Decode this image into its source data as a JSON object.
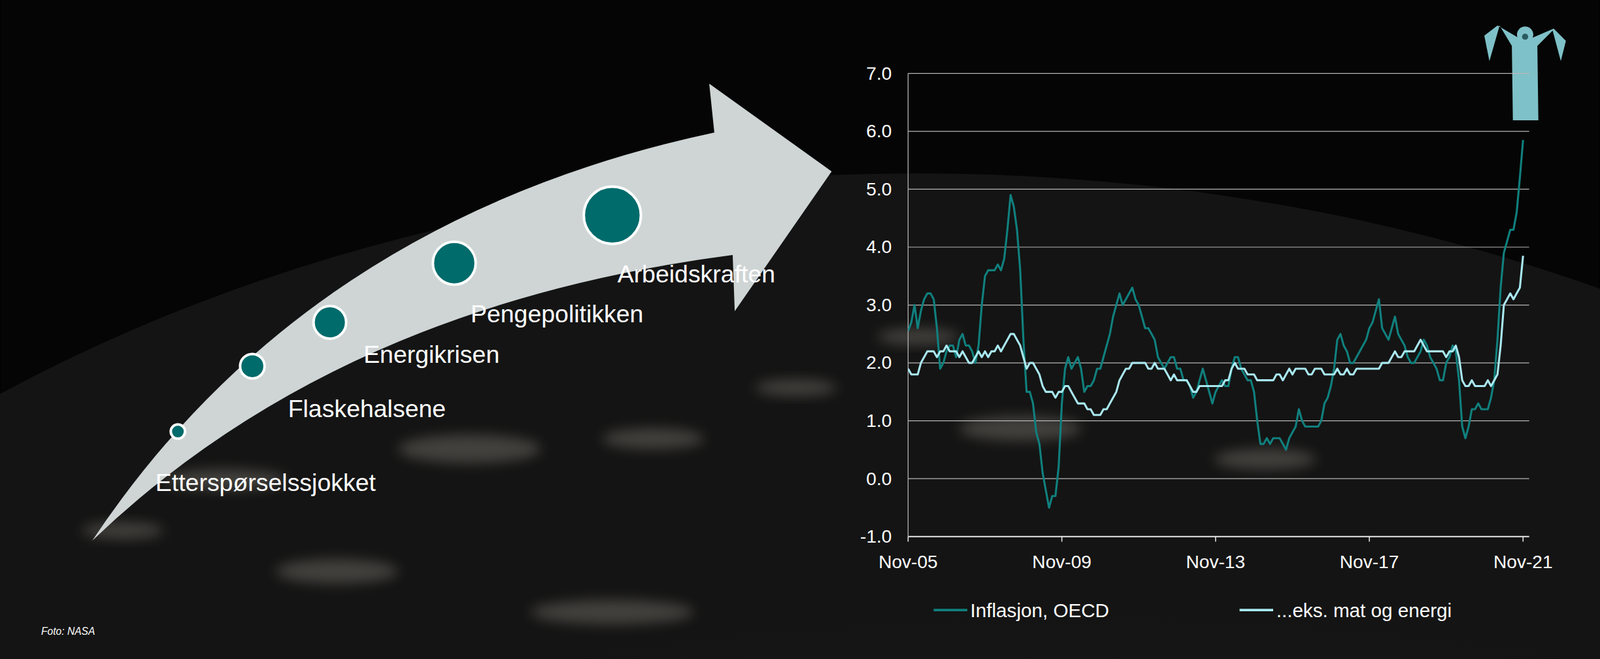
{
  "chart_data": {
    "type": "line",
    "x": [
      "2005-11",
      "2005-12",
      "2006-01",
      "2006-02",
      "2006-03",
      "2006-04",
      "2006-05",
      "2006-06",
      "2006-07",
      "2006-08",
      "2006-09",
      "2006-10",
      "2006-11",
      "2006-12",
      "2007-01",
      "2007-02",
      "2007-03",
      "2007-04",
      "2007-05",
      "2007-06",
      "2007-07",
      "2007-08",
      "2007-09",
      "2007-10",
      "2007-11",
      "2007-12",
      "2008-01",
      "2008-02",
      "2008-03",
      "2008-04",
      "2008-05",
      "2008-06",
      "2008-07",
      "2008-08",
      "2008-09",
      "2008-10",
      "2008-11",
      "2008-12",
      "2009-01",
      "2009-02",
      "2009-03",
      "2009-04",
      "2009-05",
      "2009-06",
      "2009-07",
      "2009-08",
      "2009-09",
      "2009-10",
      "2009-11",
      "2009-12",
      "2010-01",
      "2010-02",
      "2010-03",
      "2010-04",
      "2010-05",
      "2010-06",
      "2010-07",
      "2010-08",
      "2010-09",
      "2010-10",
      "2010-11",
      "2010-12",
      "2011-01",
      "2011-02",
      "2011-03",
      "2011-04",
      "2011-05",
      "2011-06",
      "2011-07",
      "2011-08",
      "2011-09",
      "2011-10",
      "2011-11",
      "2011-12",
      "2012-01",
      "2012-02",
      "2012-03",
      "2012-04",
      "2012-05",
      "2012-06",
      "2012-07",
      "2012-08",
      "2012-09",
      "2012-10",
      "2012-11",
      "2012-12",
      "2013-01",
      "2013-02",
      "2013-03",
      "2013-04",
      "2013-05",
      "2013-06",
      "2013-07",
      "2013-08",
      "2013-09",
      "2013-10",
      "2013-11",
      "2013-12",
      "2014-01",
      "2014-02",
      "2014-03",
      "2014-04",
      "2014-05",
      "2014-06",
      "2014-07",
      "2014-08",
      "2014-09",
      "2014-10",
      "2014-11",
      "2014-12",
      "2015-01",
      "2015-02",
      "2015-03",
      "2015-04",
      "2015-05",
      "2015-06",
      "2015-07",
      "2015-08",
      "2015-09",
      "2015-10",
      "2015-11",
      "2015-12",
      "2016-01",
      "2016-02",
      "2016-03",
      "2016-04",
      "2016-05",
      "2016-06",
      "2016-07",
      "2016-08",
      "2016-09",
      "2016-10",
      "2016-11",
      "2016-12",
      "2017-01",
      "2017-02",
      "2017-03",
      "2017-04",
      "2017-05",
      "2017-06",
      "2017-07",
      "2017-08",
      "2017-09",
      "2017-10",
      "2017-11",
      "2017-12",
      "2018-01",
      "2018-02",
      "2018-03",
      "2018-04",
      "2018-05",
      "2018-06",
      "2018-07",
      "2018-08",
      "2018-09",
      "2018-10",
      "2018-11",
      "2018-12",
      "2019-01",
      "2019-02",
      "2019-03",
      "2019-04",
      "2019-05",
      "2019-06",
      "2019-07",
      "2019-08",
      "2019-09",
      "2019-10",
      "2019-11",
      "2019-12",
      "2020-01",
      "2020-02",
      "2020-03",
      "2020-04",
      "2020-05",
      "2020-06",
      "2020-07",
      "2020-08",
      "2020-09",
      "2020-10",
      "2020-11",
      "2020-12",
      "2021-01",
      "2021-02",
      "2021-03",
      "2021-04",
      "2021-05",
      "2021-06",
      "2021-07",
      "2021-08",
      "2021-09",
      "2021-10",
      "2021-11"
    ],
    "series": [
      {
        "name": "Inflasjon, OECD",
        "color": "#10807e",
        "values": [
          2.55,
          2.7,
          3.0,
          2.6,
          2.9,
          3.1,
          3.2,
          3.2,
          3.1,
          2.6,
          1.9,
          2.0,
          2.2,
          2.3,
          2.3,
          2.1,
          2.4,
          2.5,
          2.3,
          2.3,
          2.2,
          2.0,
          2.3,
          3.0,
          3.5,
          3.6,
          3.6,
          3.6,
          3.7,
          3.6,
          3.8,
          4.3,
          4.9,
          4.7,
          4.3,
          3.6,
          2.4,
          1.5,
          1.5,
          1.3,
          0.8,
          0.6,
          0.1,
          -0.2,
          -0.5,
          -0.3,
          -0.3,
          0.2,
          1.3,
          1.9,
          2.1,
          1.9,
          2.0,
          2.1,
          1.9,
          1.5,
          1.6,
          1.6,
          1.7,
          1.9,
          1.9,
          2.1,
          2.3,
          2.5,
          2.8,
          3.0,
          3.2,
          3.0,
          3.1,
          3.2,
          3.3,
          3.1,
          3.0,
          2.8,
          2.6,
          2.6,
          2.5,
          2.4,
          2.1,
          2.0,
          1.9,
          2.0,
          2.1,
          2.1,
          1.9,
          1.9,
          1.7,
          1.7,
          1.6,
          1.4,
          1.5,
          1.7,
          1.9,
          1.7,
          1.5,
          1.3,
          1.5,
          1.6,
          1.7,
          1.6,
          1.6,
          1.9,
          2.1,
          2.1,
          1.9,
          1.8,
          1.7,
          1.7,
          1.5,
          1.0,
          0.6,
          0.6,
          0.7,
          0.6,
          0.7,
          0.7,
          0.7,
          0.6,
          0.5,
          0.7,
          0.8,
          0.9,
          1.2,
          1.0,
          0.9,
          0.9,
          0.9,
          0.9,
          0.9,
          1.0,
          1.3,
          1.4,
          1.6,
          1.9,
          2.4,
          2.5,
          2.3,
          2.2,
          2.0,
          2.0,
          2.1,
          2.2,
          2.3,
          2.4,
          2.6,
          2.7,
          2.9,
          3.1,
          2.6,
          2.5,
          2.4,
          2.6,
          2.8,
          2.5,
          2.4,
          2.3,
          2.1,
          2.0,
          2.0,
          2.1,
          2.2,
          2.4,
          2.3,
          2.1,
          2.0,
          1.9,
          1.7,
          1.7,
          2.0,
          2.1,
          2.3,
          2.2,
          1.7,
          0.9,
          0.7,
          0.9,
          1.2,
          1.2,
          1.3,
          1.2,
          1.2,
          1.2,
          1.4,
          1.7,
          2.4,
          3.3,
          3.9,
          4.1,
          4.3,
          4.3,
          4.6,
          5.2,
          5.85
        ]
      },
      {
        "name": "...eks. mat og energi",
        "color": "#a9e8f0",
        "values": [
          1.9,
          1.8,
          1.8,
          1.8,
          2.0,
          2.1,
          2.2,
          2.2,
          2.2,
          2.1,
          2.2,
          2.2,
          2.3,
          2.2,
          2.2,
          2.2,
          2.1,
          2.2,
          2.1,
          2.0,
          2.0,
          2.1,
          2.2,
          2.1,
          2.2,
          2.1,
          2.2,
          2.2,
          2.3,
          2.2,
          2.3,
          2.4,
          2.5,
          2.5,
          2.4,
          2.3,
          2.1,
          1.9,
          2.0,
          2.0,
          1.9,
          1.8,
          1.6,
          1.5,
          1.5,
          1.5,
          1.4,
          1.5,
          1.5,
          1.6,
          1.6,
          1.5,
          1.4,
          1.3,
          1.3,
          1.3,
          1.2,
          1.2,
          1.1,
          1.1,
          1.1,
          1.2,
          1.2,
          1.3,
          1.4,
          1.5,
          1.7,
          1.8,
          1.9,
          1.9,
          2.0,
          2.0,
          2.0,
          2.0,
          2.0,
          1.9,
          1.9,
          2.0,
          1.9,
          1.9,
          1.9,
          1.8,
          1.7,
          1.8,
          1.7,
          1.7,
          1.7,
          1.7,
          1.6,
          1.5,
          1.5,
          1.6,
          1.6,
          1.6,
          1.6,
          1.6,
          1.6,
          1.6,
          1.6,
          1.7,
          1.7,
          1.9,
          2.0,
          1.9,
          1.9,
          1.9,
          1.8,
          1.8,
          1.8,
          1.7,
          1.7,
          1.7,
          1.7,
          1.7,
          1.7,
          1.8,
          1.8,
          1.7,
          1.8,
          1.9,
          1.8,
          1.9,
          1.9,
          1.9,
          1.9,
          1.8,
          1.8,
          1.9,
          1.9,
          1.9,
          1.8,
          1.8,
          1.8,
          1.8,
          1.9,
          1.8,
          1.8,
          1.9,
          1.8,
          1.8,
          1.9,
          1.9,
          1.9,
          1.9,
          1.9,
          1.9,
          1.9,
          1.9,
          2.0,
          2.0,
          2.0,
          2.1,
          2.2,
          2.1,
          2.1,
          2.2,
          2.2,
          2.2,
          2.2,
          2.3,
          2.4,
          2.3,
          2.2,
          2.2,
          2.2,
          2.2,
          2.2,
          2.2,
          2.1,
          2.2,
          2.2,
          2.3,
          2.1,
          1.7,
          1.6,
          1.6,
          1.7,
          1.6,
          1.6,
          1.6,
          1.6,
          1.7,
          1.6,
          1.7,
          1.8,
          2.3,
          3.0,
          3.1,
          3.2,
          3.1,
          3.2,
          3.3,
          3.85
        ]
      }
    ],
    "xlim": [
      "2005-11",
      "2021-11"
    ],
    "xticks": [
      {
        "value": "2005-11",
        "label": "Nov-05"
      },
      {
        "value": "2009-11",
        "label": "Nov-09"
      },
      {
        "value": "2013-11",
        "label": "Nov-13"
      },
      {
        "value": "2017-11",
        "label": "Nov-17"
      },
      {
        "value": "2021-11",
        "label": "Nov-21"
      }
    ],
    "ylim": [
      -1,
      7
    ],
    "yticks": [
      {
        "value": -1,
        "label": "-1.0"
      },
      {
        "value": 0,
        "label": "0.0"
      },
      {
        "value": 1,
        "label": "1.0"
      },
      {
        "value": 2,
        "label": "2.0"
      },
      {
        "value": 3,
        "label": "3.0"
      },
      {
        "value": 4,
        "label": "4.0"
      },
      {
        "value": 5,
        "label": "5.0"
      },
      {
        "value": 6,
        "label": "6.0"
      },
      {
        "value": 7,
        "label": "7.0"
      }
    ],
    "grid": true,
    "legend": "bottom"
  },
  "slide": {
    "steps": [
      "Etterspørselssjokket",
      "Flaskehalsene",
      "Energikrisen",
      "Pengepolitikken",
      "Arbeidskraften"
    ],
    "credit": "Foto: NASA"
  }
}
